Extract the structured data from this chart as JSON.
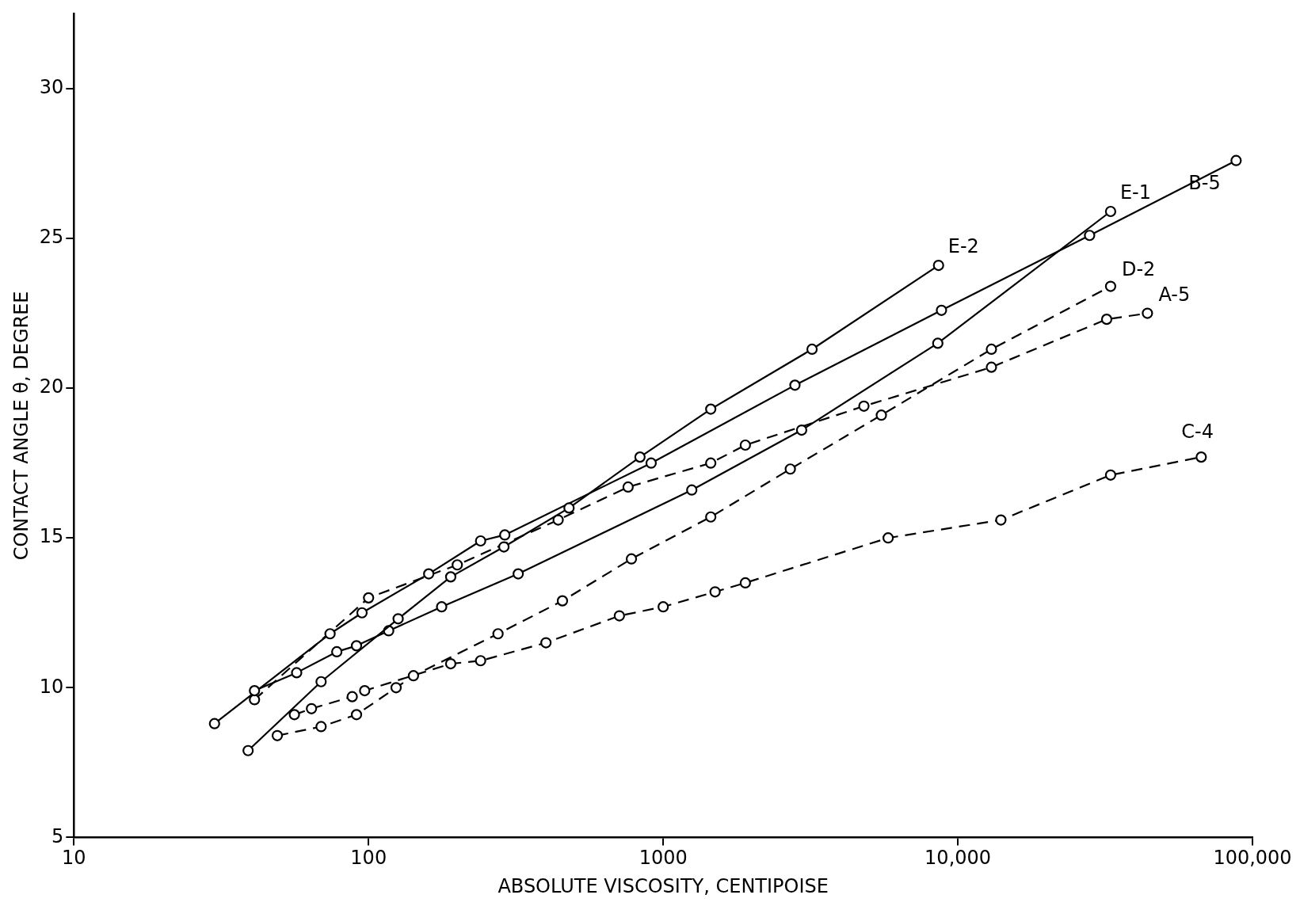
{
  "chart_data": {
    "type": "line",
    "xlabel": "ABSOLUTE VISCOSITY, CENTIPOISE",
    "ylabel": "CONTACT ANGLE θ, DEGREE",
    "log": "x",
    "grid": false,
    "legend": false,
    "marker": "circle",
    "xlim": [
      10,
      100000
    ],
    "ylim": [
      5,
      32.5
    ],
    "xticks": [
      10,
      100,
      1000,
      {
        "value": 10000,
        "label": "10,000"
      },
      {
        "value": 100000,
        "label": "100,000"
      }
    ],
    "yticks": [
      5,
      10,
      15,
      20,
      25,
      30
    ],
    "series": [
      {
        "name": "E-2",
        "color": "#000000",
        "line_style": "solid",
        "x": [
          39,
          69,
          126,
          190,
          288,
          479,
          834,
          1450,
          3200,
          8600
        ],
        "values": [
          7.9,
          10.2,
          12.3,
          13.7,
          14.7,
          16.0,
          17.7,
          19.3,
          21.3,
          24.1
        ]
      },
      {
        "name": "E-1",
        "color": "#000000",
        "line_style": "solid",
        "x": [
          41,
          57,
          78,
          91,
          117,
          177,
          322,
          1250,
          2950,
          8550,
          33000
        ],
        "values": [
          9.9,
          10.5,
          11.2,
          11.4,
          11.9,
          12.7,
          13.8,
          16.6,
          18.6,
          21.5,
          25.9
        ]
      },
      {
        "name": "B-5",
        "color": "#000000",
        "line_style": "solid",
        "x": [
          30,
          74,
          95,
          160,
          240,
          290,
          910,
          2800,
          8800,
          28000,
          88000
        ],
        "values": [
          8.8,
          11.8,
          12.5,
          13.8,
          14.9,
          15.1,
          17.5,
          20.1,
          22.6,
          25.1,
          27.6
        ]
      },
      {
        "name": "D-2",
        "color": "#000000",
        "line_style": "dashed",
        "x": [
          49,
          69,
          91,
          124,
          142,
          275,
          455,
          780,
          1450,
          2700,
          5500,
          13000,
          33000
        ],
        "values": [
          8.4,
          8.7,
          9.1,
          10.0,
          10.4,
          11.8,
          12.9,
          14.3,
          15.7,
          17.3,
          19.1,
          21.3,
          23.4
        ]
      },
      {
        "name": "A-5",
        "color": "#000000",
        "line_style": "dashed",
        "x": [
          41,
          100,
          200,
          440,
          760,
          1450,
          1900,
          4800,
          13000,
          32000,
          44000
        ],
        "values": [
          9.6,
          13.0,
          14.1,
          15.6,
          16.7,
          17.5,
          18.1,
          19.4,
          20.7,
          22.3,
          22.5
        ]
      },
      {
        "name": "C-4",
        "color": "#000000",
        "line_style": "dashed",
        "x": [
          56,
          64,
          88,
          97,
          190,
          240,
          400,
          710,
          1000,
          1500,
          1900,
          5800,
          14000,
          33000,
          67000
        ],
        "values": [
          9.1,
          9.3,
          9.7,
          9.9,
          10.8,
          10.9,
          11.5,
          12.4,
          12.7,
          13.2,
          13.5,
          15.0,
          15.6,
          17.1,
          17.7
        ]
      }
    ]
  }
}
